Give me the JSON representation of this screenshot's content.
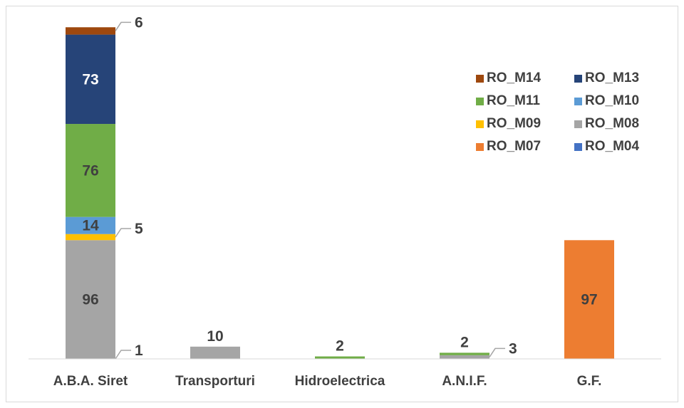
{
  "chart_data": {
    "type": "bar",
    "stacked": true,
    "categories": [
      "A.B.A. Siret",
      "Transporturi",
      "Hidroelectrica",
      "A.N.I.F.",
      "G.F."
    ],
    "series": [
      {
        "name": "RO_M04",
        "color": "#4472C4",
        "values": [
          0,
          0,
          0,
          0,
          0
        ]
      },
      {
        "name": "RO_M07",
        "color": "#ED7D31",
        "values": [
          0,
          0,
          0,
          0,
          97
        ]
      },
      {
        "name": "RO_M08",
        "color": "#A5A5A5",
        "values": [
          97,
          10,
          0,
          3,
          0
        ]
      },
      {
        "name": "RO_M09",
        "color": "#FFC000",
        "values": [
          5,
          0,
          0,
          0,
          0
        ]
      },
      {
        "name": "RO_M10",
        "color": "#5B9BD5",
        "values": [
          14,
          0,
          0,
          0,
          0
        ]
      },
      {
        "name": "RO_M11",
        "color": "#70AD47",
        "values": [
          76,
          0,
          2,
          2,
          0
        ]
      },
      {
        "name": "RO_M13",
        "color": "#264478",
        "values": [
          73,
          0,
          0,
          0,
          0
        ]
      },
      {
        "name": "RO_M14",
        "color": "#9E480E",
        "values": [
          6,
          0,
          0,
          0,
          0
        ]
      }
    ],
    "data_labels": [
      {
        "category": 0,
        "series": "RO_M14",
        "text": "6",
        "callout": true
      },
      {
        "category": 0,
        "series": "RO_M13",
        "text": "73"
      },
      {
        "category": 0,
        "series": "RO_M11",
        "text": "76"
      },
      {
        "category": 0,
        "series": "RO_M10",
        "text": "14"
      },
      {
        "category": 0,
        "series": "RO_M09",
        "text": "5",
        "callout": true
      },
      {
        "category": 0,
        "series": "RO_M08",
        "text": "96"
      },
      {
        "category": 0,
        "series": "RO_M08",
        "text": "1",
        "callout": true,
        "at_base": true
      },
      {
        "category": 1,
        "series": "RO_M08",
        "text": "10",
        "above": true
      },
      {
        "category": 2,
        "series": "RO_M11",
        "text": "2",
        "above": true
      },
      {
        "category": 3,
        "series": "RO_M11",
        "text": "2",
        "above": true
      },
      {
        "category": 3,
        "series": "RO_M08",
        "text": "3",
        "callout": true
      },
      {
        "category": 4,
        "series": "RO_M07",
        "text": "97"
      }
    ],
    "legend": {
      "position": "top-right",
      "order": [
        "RO_M14",
        "RO_M13",
        "RO_M11",
        "RO_M10",
        "RO_M09",
        "RO_M08",
        "RO_M07",
        "RO_M04"
      ]
    },
    "title": "",
    "xlabel": "",
    "ylabel": "",
    "ylim": [
      0,
      270
    ],
    "grid": false
  }
}
